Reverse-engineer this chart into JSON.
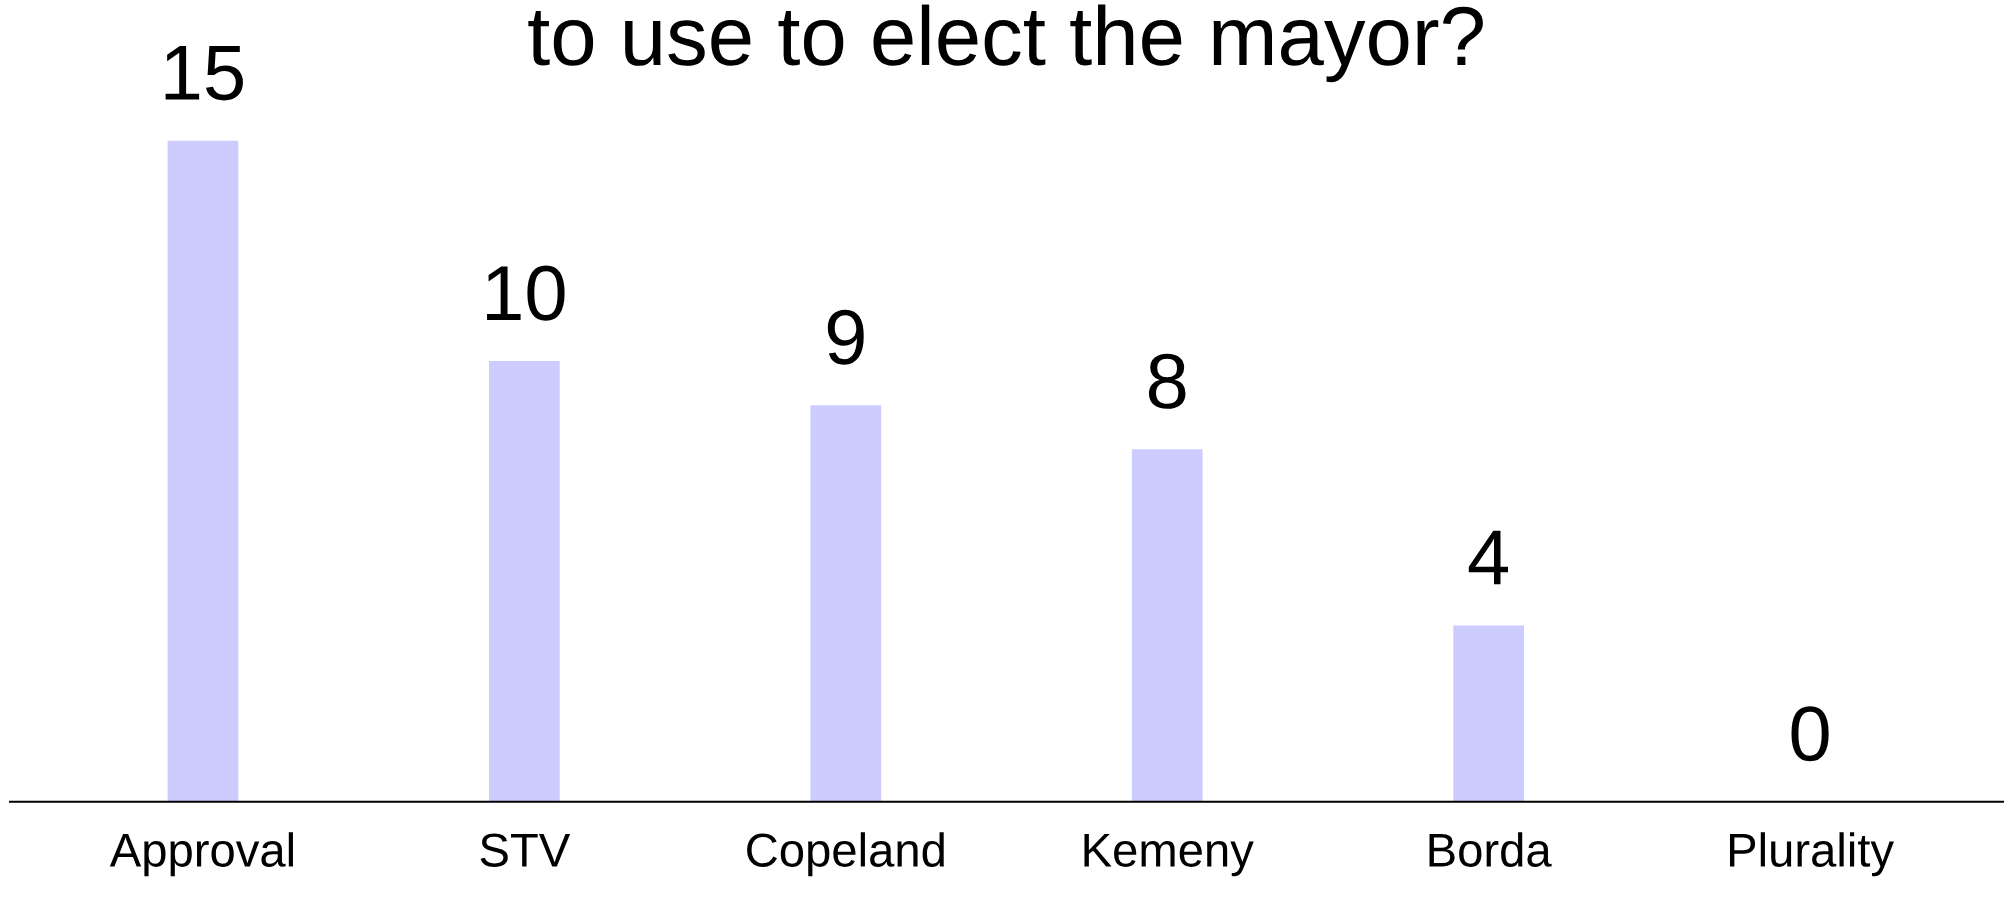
{
  "chart_data": {
    "type": "bar",
    "title": "to use to elect the mayor?",
    "categories": [
      "Approval",
      "STV",
      "Copeland",
      "Kemeny",
      "Borda",
      "Plurality"
    ],
    "values": [
      15,
      10,
      9,
      8,
      4,
      0
    ],
    "color": "#ccccff",
    "data_labels": true,
    "grid": false,
    "legend": false
  }
}
